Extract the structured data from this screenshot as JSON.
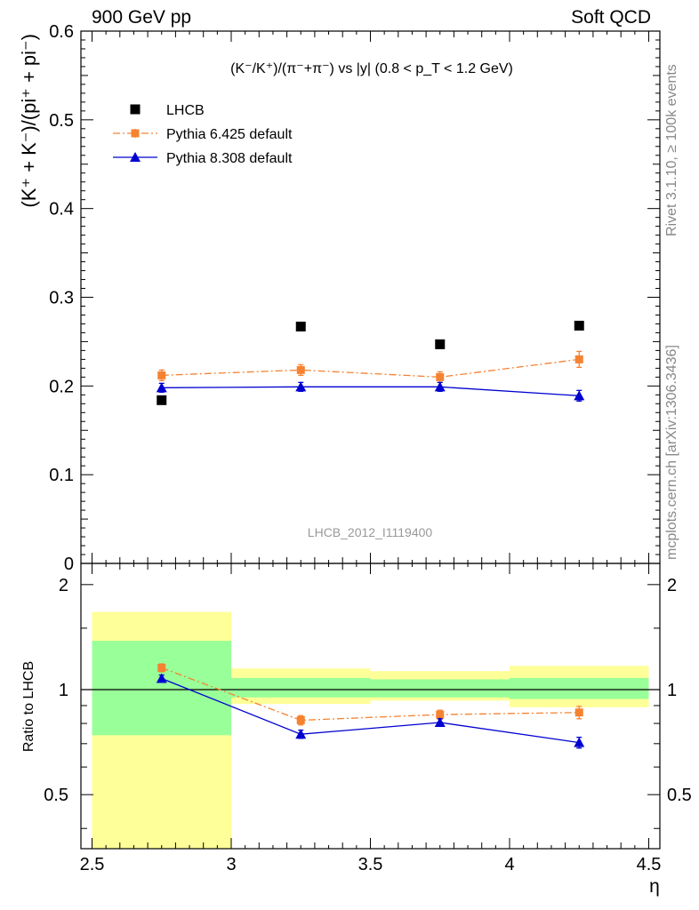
{
  "header": {
    "left": "900 GeV pp",
    "right": "Soft QCD"
  },
  "side_labels": {
    "rivet": "Rivet 3.1.10, ≥ 100k events",
    "mcplots": "mcplots.cern.ch [arXiv:1306.3436]"
  },
  "chart_data": [
    {
      "type": "scatter",
      "title": "(K⁻/K⁺)/(π⁻+π⁻) vs |y| (0.8 < p_T < 1.2 GeV)",
      "xlabel": "η",
      "ylabel": "(K⁺ + K⁻)/(pi⁺ + pi⁻)",
      "watermark": "LHCB_2012_I1119400",
      "xlim": [
        2.5,
        4.5
      ],
      "ylim": [
        0,
        0.6
      ],
      "yticks": [
        "0",
        "0.1",
        "0.2",
        "0.3",
        "0.4",
        "0.5",
        "0.6"
      ],
      "legend_position": "top-left",
      "x": [
        2.75,
        3.25,
        3.75,
        4.25
      ],
      "series": [
        {
          "name": "LHCB",
          "color": "#000000",
          "marker": "square",
          "line": "none",
          "values": [
            0.184,
            0.267,
            0.247,
            0.268
          ],
          "errors": [
            0,
            0,
            0,
            0
          ]
        },
        {
          "name": "Pythia 6.425 default",
          "color": "#f58231",
          "marker": "square-small",
          "line": "dashdot",
          "values": [
            0.212,
            0.218,
            0.21,
            0.23
          ],
          "errors": [
            0.006,
            0.006,
            0.006,
            0.009
          ]
        },
        {
          "name": "Pythia 8.308 default",
          "color": "#0000d0",
          "marker": "triangle",
          "line": "solid",
          "values": [
            0.198,
            0.199,
            0.199,
            0.189
          ],
          "errors": [
            0.005,
            0.005,
            0.005,
            0.006
          ]
        }
      ]
    },
    {
      "type": "scatter",
      "ylabel": "Ratio to LHCB",
      "xlabel": "η",
      "xlim": [
        2.5,
        4.5
      ],
      "ylim": [
        0.35,
        2.3
      ],
      "scale": "log",
      "yticks": [
        "0.5",
        "1",
        "2"
      ],
      "xticks": [
        "2.5",
        "3",
        "3.5",
        "4",
        "4.5"
      ],
      "uncertainty_bands": {
        "bin_edges": [
          2.5,
          3.0,
          3.5,
          4.0,
          4.5
        ],
        "inner_color": "#99ff99",
        "outer_color": "#ffff99",
        "inner": [
          [
            0.74,
            1.38
          ],
          [
            0.95,
            1.08
          ],
          [
            0.95,
            1.07
          ],
          [
            0.94,
            1.08
          ]
        ],
        "outer": [
          [
            0.35,
            1.67
          ],
          [
            0.91,
            1.15
          ],
          [
            0.93,
            1.13
          ],
          [
            0.89,
            1.17
          ]
        ]
      },
      "x": [
        2.75,
        3.25,
        3.75,
        4.25
      ],
      "series": [
        {
          "name": "Pythia 6.425 default",
          "color": "#f58231",
          "marker": "square-small",
          "line": "dashdot",
          "values": [
            1.155,
            0.817,
            0.848,
            0.86
          ],
          "errors": [
            0.03,
            0.025,
            0.025,
            0.035
          ]
        },
        {
          "name": "Pythia 8.308 default",
          "color": "#0000d0",
          "marker": "triangle",
          "line": "solid",
          "values": [
            1.076,
            0.745,
            0.805,
            0.705
          ],
          "errors": [
            0.025,
            0.02,
            0.02,
            0.025
          ]
        }
      ]
    }
  ]
}
